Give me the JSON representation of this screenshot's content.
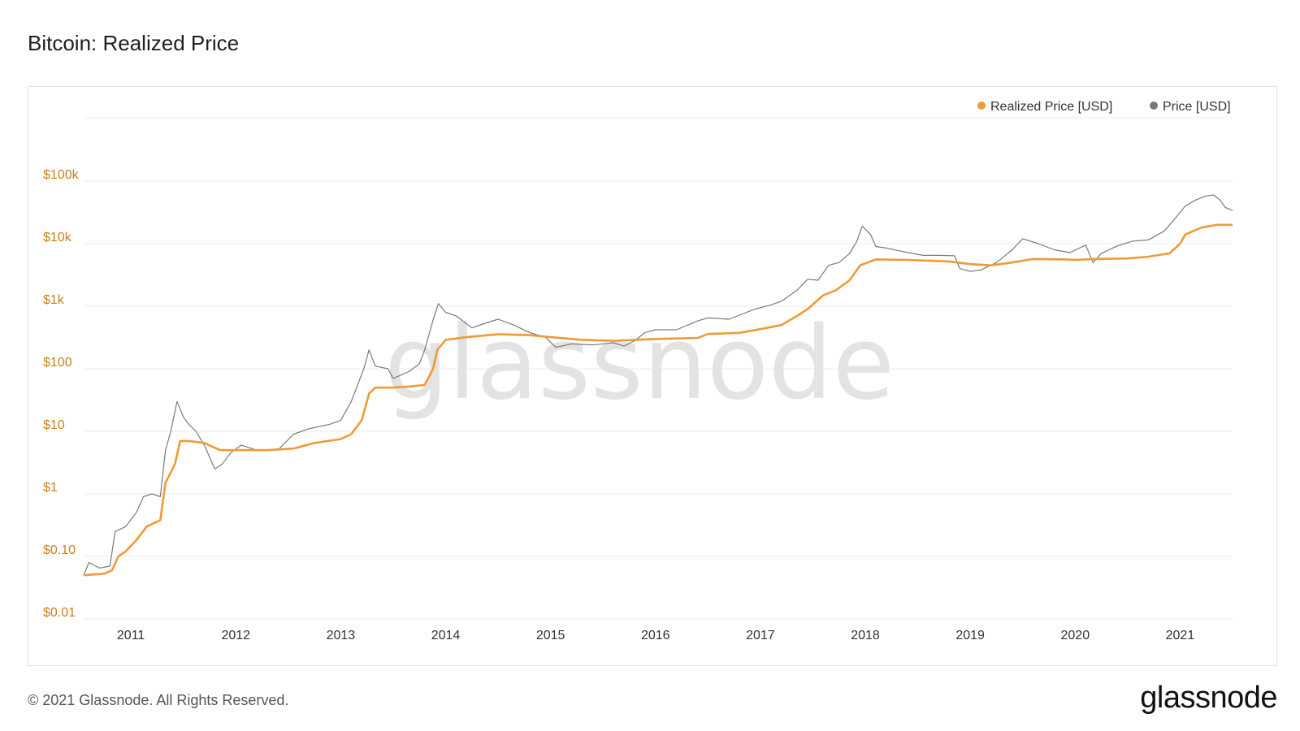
{
  "title": "Bitcoin: Realized Price",
  "footer": "© 2021 Glassnode. All Rights Reserved.",
  "brand": "glassnode",
  "watermark": "glassnode",
  "colors": {
    "realized": "#f09a36",
    "price": "#7a7a7a",
    "grid": "#eeeeee",
    "ytick": "#c97f1c",
    "xtick": "#333333"
  },
  "chart_data": {
    "type": "line",
    "y_scale": "log",
    "ylim": [
      0.01,
      100000
    ],
    "y_ticks": [
      {
        "v": 0.01,
        "label": "$0.01"
      },
      {
        "v": 0.1,
        "label": "$0.10"
      },
      {
        "v": 1,
        "label": "$1"
      },
      {
        "v": 10,
        "label": "$10"
      },
      {
        "v": 100,
        "label": "$100"
      },
      {
        "v": 1000,
        "label": "$1k"
      },
      {
        "v": 10000,
        "label": "$10k"
      },
      {
        "v": 100000,
        "label": "$100k"
      }
    ],
    "xlim": [
      2010.55,
      2021.5
    ],
    "x_ticks": [
      "2011",
      "2012",
      "2013",
      "2014",
      "2015",
      "2016",
      "2017",
      "2018",
      "2019",
      "2020",
      "2021"
    ],
    "legend_position": "top-right",
    "series": [
      {
        "name": "Realized Price [USD]",
        "color": "#f09a36",
        "points": [
          [
            2010.55,
            0.05
          ],
          [
            2010.75,
            0.053
          ],
          [
            2010.82,
            0.06
          ],
          [
            2010.88,
            0.1
          ],
          [
            2010.95,
            0.12
          ],
          [
            2011.05,
            0.18
          ],
          [
            2011.15,
            0.3
          ],
          [
            2011.28,
            0.38
          ],
          [
            2011.33,
            1.5
          ],
          [
            2011.42,
            3.0
          ],
          [
            2011.47,
            7.0
          ],
          [
            2011.55,
            7.0
          ],
          [
            2011.7,
            6.5
          ],
          [
            2011.85,
            5.0
          ],
          [
            2012.0,
            5.0
          ],
          [
            2012.3,
            5.0
          ],
          [
            2012.55,
            5.3
          ],
          [
            2012.75,
            6.5
          ],
          [
            2013.0,
            7.5
          ],
          [
            2013.1,
            9.0
          ],
          [
            2013.2,
            15
          ],
          [
            2013.27,
            40
          ],
          [
            2013.33,
            50
          ],
          [
            2013.5,
            50
          ],
          [
            2013.65,
            52
          ],
          [
            2013.8,
            55
          ],
          [
            2013.88,
            100
          ],
          [
            2013.92,
            200
          ],
          [
            2014.0,
            290
          ],
          [
            2014.2,
            320
          ],
          [
            2014.5,
            355
          ],
          [
            2014.8,
            345
          ],
          [
            2015.0,
            320
          ],
          [
            2015.3,
            290
          ],
          [
            2015.6,
            280
          ],
          [
            2016.0,
            300
          ],
          [
            2016.4,
            310
          ],
          [
            2016.5,
            360
          ],
          [
            2016.8,
            375
          ],
          [
            2017.0,
            430
          ],
          [
            2017.2,
            500
          ],
          [
            2017.35,
            700
          ],
          [
            2017.45,
            900
          ],
          [
            2017.6,
            1500
          ],
          [
            2017.72,
            1800
          ],
          [
            2017.85,
            2600
          ],
          [
            2017.95,
            4500
          ],
          [
            2018.1,
            5600
          ],
          [
            2018.4,
            5500
          ],
          [
            2018.8,
            5200
          ],
          [
            2019.0,
            4700
          ],
          [
            2019.2,
            4500
          ],
          [
            2019.4,
            5000
          ],
          [
            2019.6,
            5700
          ],
          [
            2019.9,
            5600
          ],
          [
            2020.0,
            5500
          ],
          [
            2020.2,
            5700
          ],
          [
            2020.5,
            5800
          ],
          [
            2020.7,
            6200
          ],
          [
            2020.9,
            7000
          ],
          [
            2021.0,
            10000
          ],
          [
            2021.05,
            14000
          ],
          [
            2021.2,
            18000
          ],
          [
            2021.35,
            20000
          ],
          [
            2021.5,
            20000
          ]
        ]
      },
      {
        "name": "Price [USD]",
        "color": "#7a7a7a",
        "points": [
          [
            2010.55,
            0.05
          ],
          [
            2010.6,
            0.08
          ],
          [
            2010.7,
            0.065
          ],
          [
            2010.8,
            0.07
          ],
          [
            2010.85,
            0.25
          ],
          [
            2010.95,
            0.3
          ],
          [
            2011.05,
            0.5
          ],
          [
            2011.12,
            0.9
          ],
          [
            2011.2,
            1.0
          ],
          [
            2011.28,
            0.9
          ],
          [
            2011.33,
            5
          ],
          [
            2011.38,
            10
          ],
          [
            2011.44,
            30
          ],
          [
            2011.5,
            17
          ],
          [
            2011.55,
            13
          ],
          [
            2011.62,
            10
          ],
          [
            2011.7,
            6
          ],
          [
            2011.8,
            2.5
          ],
          [
            2011.87,
            3
          ],
          [
            2011.95,
            4.5
          ],
          [
            2012.05,
            6
          ],
          [
            2012.2,
            5
          ],
          [
            2012.4,
            5
          ],
          [
            2012.55,
            9
          ],
          [
            2012.7,
            11
          ],
          [
            2012.9,
            13
          ],
          [
            2013.0,
            15
          ],
          [
            2013.1,
            30
          ],
          [
            2013.22,
            100
          ],
          [
            2013.27,
            200
          ],
          [
            2013.33,
            110
          ],
          [
            2013.45,
            100
          ],
          [
            2013.5,
            70
          ],
          [
            2013.65,
            90
          ],
          [
            2013.75,
            120
          ],
          [
            2013.8,
            200
          ],
          [
            2013.88,
            600
          ],
          [
            2013.93,
            1100
          ],
          [
            2014.0,
            800
          ],
          [
            2014.1,
            700
          ],
          [
            2014.25,
            450
          ],
          [
            2014.4,
            550
          ],
          [
            2014.5,
            620
          ],
          [
            2014.65,
            500
          ],
          [
            2014.8,
            380
          ],
          [
            2014.95,
            320
          ],
          [
            2015.05,
            220
          ],
          [
            2015.2,
            250
          ],
          [
            2015.4,
            240
          ],
          [
            2015.6,
            260
          ],
          [
            2015.7,
            230
          ],
          [
            2015.8,
            280
          ],
          [
            2015.9,
            380
          ],
          [
            2016.0,
            420
          ],
          [
            2016.2,
            420
          ],
          [
            2016.4,
            580
          ],
          [
            2016.5,
            650
          ],
          [
            2016.7,
            620
          ],
          [
            2016.95,
            900
          ],
          [
            2017.1,
            1050
          ],
          [
            2017.2,
            1200
          ],
          [
            2017.35,
            1800
          ],
          [
            2017.45,
            2700
          ],
          [
            2017.55,
            2600
          ],
          [
            2017.65,
            4500
          ],
          [
            2017.75,
            5000
          ],
          [
            2017.85,
            7000
          ],
          [
            2017.92,
            11000
          ],
          [
            2017.97,
            19000
          ],
          [
            2018.05,
            14000
          ],
          [
            2018.1,
            9000
          ],
          [
            2018.2,
            8500
          ],
          [
            2018.35,
            7500
          ],
          [
            2018.55,
            6500
          ],
          [
            2018.7,
            6500
          ],
          [
            2018.85,
            6400
          ],
          [
            2018.9,
            4000
          ],
          [
            2019.0,
            3600
          ],
          [
            2019.1,
            3800
          ],
          [
            2019.25,
            5000
          ],
          [
            2019.4,
            8000
          ],
          [
            2019.5,
            12000
          ],
          [
            2019.65,
            10000
          ],
          [
            2019.8,
            8000
          ],
          [
            2019.95,
            7200
          ],
          [
            2020.1,
            9500
          ],
          [
            2020.17,
            5000
          ],
          [
            2020.25,
            7000
          ],
          [
            2020.4,
            9200
          ],
          [
            2020.55,
            11000
          ],
          [
            2020.7,
            11500
          ],
          [
            2020.85,
            16000
          ],
          [
            2020.95,
            25000
          ],
          [
            2021.05,
            40000
          ],
          [
            2021.15,
            50000
          ],
          [
            2021.25,
            58000
          ],
          [
            2021.32,
            60000
          ],
          [
            2021.38,
            50000
          ],
          [
            2021.43,
            38000
          ],
          [
            2021.5,
            34000
          ]
        ]
      }
    ]
  }
}
